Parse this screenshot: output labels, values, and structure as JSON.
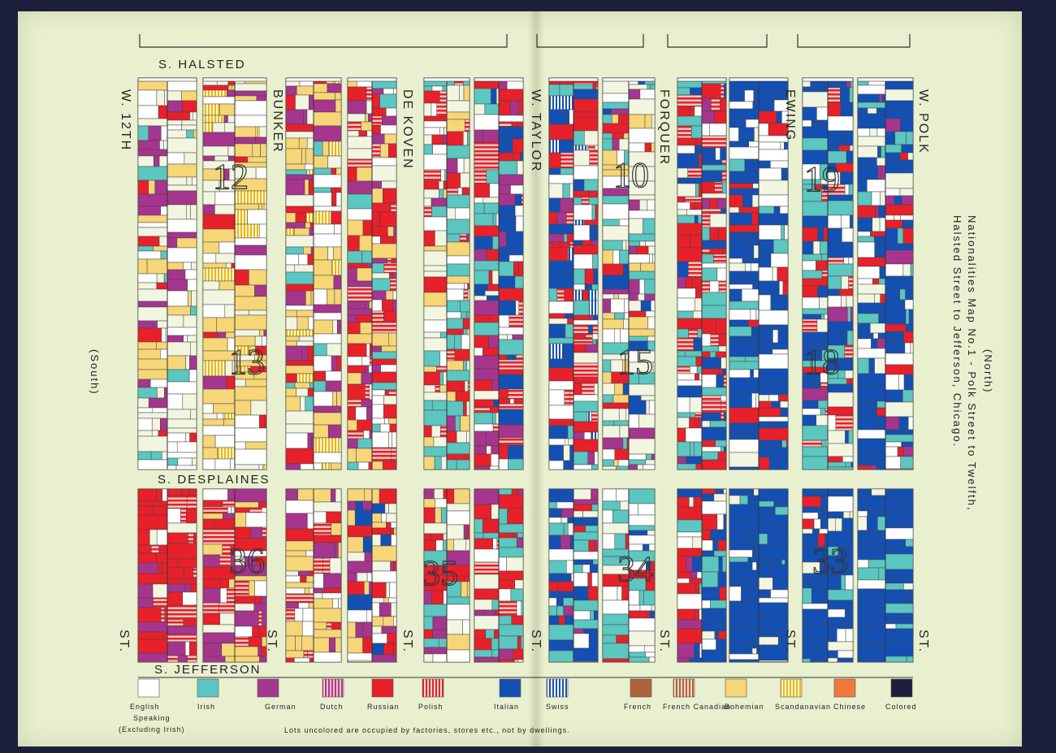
{
  "title": {
    "north": "(North)",
    "line1": "Nationalities Map No.1 - Polk Street to Twelfth,",
    "line2": "Halsted Street to Jefferson, Chicago."
  },
  "south_label": "(South)",
  "streets": {
    "top": "S. HALSTED",
    "middle": "S. DESPLAINES",
    "bottom": "S. JEFFERSON",
    "cross": [
      "W. 12TH",
      "BUNKER",
      "DE KOVEN",
      "W. TAYLOR",
      "FORQUER",
      "EWING",
      "W. POLK"
    ],
    "bottom_st": "ST.",
    "top_st": "ST."
  },
  "wards": [
    "12",
    "13",
    "36",
    "35",
    "10",
    "15",
    "19",
    "18",
    "34",
    "33"
  ],
  "note": "Lots uncolored are occupied by factories, stores etc., not by dwellings.",
  "legend": [
    {
      "label": "English Speaking (Excluding Irish)",
      "line1": "English",
      "line2": "Speaking",
      "line3": "(Excluding Irish)",
      "color": "#ffffff",
      "pattern": "solid"
    },
    {
      "label": "Irish",
      "color": "#5cc6c0",
      "pattern": "solid"
    },
    {
      "label": "German",
      "color": "#a6358e",
      "pattern": "solid"
    },
    {
      "label": "Dutch",
      "color": "#b23a7e",
      "pattern": "stripe"
    },
    {
      "label": "Russian",
      "color": "#e8202a",
      "pattern": "solid"
    },
    {
      "label": "Polish",
      "color": "#e8202a",
      "pattern": "stripe"
    },
    {
      "label": "Italian",
      "color": "#1450b4",
      "pattern": "solid"
    },
    {
      "label": "Swiss",
      "color": "#1450b4",
      "pattern": "stripe"
    },
    {
      "label": "French",
      "color": "#b0623a",
      "pattern": "solid"
    },
    {
      "label": "French Canadian",
      "color": "#b0623a",
      "pattern": "stripe"
    },
    {
      "label": "Bohemian",
      "color": "#f7d678",
      "pattern": "solid"
    },
    {
      "label": "Scandanavian",
      "color": "#f0cc40",
      "pattern": "stripe"
    },
    {
      "label": "Chinese",
      "color": "#f07a3a",
      "pattern": "solid"
    },
    {
      "label": "Colored",
      "color": "#1e1e3c",
      "pattern": "solid"
    }
  ],
  "colors": {
    "paper": "#e9f0cf",
    "border": "#1c1f3a",
    "lot_line": "#333333"
  }
}
